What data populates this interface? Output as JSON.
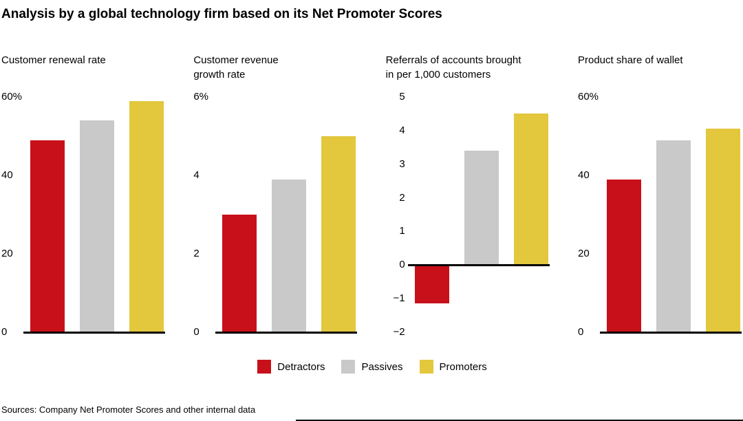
{
  "page": {
    "title": "Analysis by a global technology firm based on its Net Promoter Scores",
    "source": "Sources: Company Net Promoter Scores and other internal data"
  },
  "legend": [
    {
      "label": "Detractors",
      "color": "#c8101a"
    },
    {
      "label": "Passives",
      "color": "#c9c9c9"
    },
    {
      "label": "Promoters",
      "color": "#e3c73d"
    }
  ],
  "chart_data": [
    {
      "type": "bar",
      "title": "Customer renewal rate",
      "categories": [
        "Detractors",
        "Passives",
        "Promoters"
      ],
      "values": [
        49,
        54,
        59
      ],
      "ylim": [
        0,
        60
      ],
      "ticks": [
        {
          "value": 60,
          "label": "60%"
        },
        {
          "value": 40,
          "label": "40"
        },
        {
          "value": 20,
          "label": "20"
        },
        {
          "value": 0,
          "label": "0"
        }
      ]
    },
    {
      "type": "bar",
      "title": "Customer revenue\ngrowth rate",
      "categories": [
        "Detractors",
        "Passives",
        "Promoters"
      ],
      "values": [
        3,
        3.9,
        5
      ],
      "ylim": [
        0,
        6
      ],
      "ticks": [
        {
          "value": 6,
          "label": "6%"
        },
        {
          "value": 4,
          "label": "4"
        },
        {
          "value": 2,
          "label": "2"
        },
        {
          "value": 0,
          "label": "0"
        }
      ]
    },
    {
      "type": "bar",
      "title": "Referrals of accounts brought\nin per 1,000 customers",
      "categories": [
        "Detractors",
        "Passives",
        "Promoters"
      ],
      "values": [
        -1.1,
        3.4,
        4.5
      ],
      "ylim": [
        -2,
        5
      ],
      "ticks": [
        {
          "value": 5,
          "label": "5"
        },
        {
          "value": 4,
          "label": "4"
        },
        {
          "value": 3,
          "label": "3"
        },
        {
          "value": 2,
          "label": "2"
        },
        {
          "value": 1,
          "label": "1"
        },
        {
          "value": 0,
          "label": "0"
        },
        {
          "value": -1,
          "label": "−1"
        },
        {
          "value": -2,
          "label": "−2"
        }
      ]
    },
    {
      "type": "bar",
      "title": "Product share of wallet",
      "categories": [
        "Detractors",
        "Passives",
        "Promoters"
      ],
      "values": [
        39,
        49,
        52
      ],
      "ylim": [
        0,
        60
      ],
      "ticks": [
        {
          "value": 60,
          "label": "60%"
        },
        {
          "value": 40,
          "label": "40"
        },
        {
          "value": 20,
          "label": "20"
        },
        {
          "value": 0,
          "label": "0"
        }
      ]
    }
  ]
}
